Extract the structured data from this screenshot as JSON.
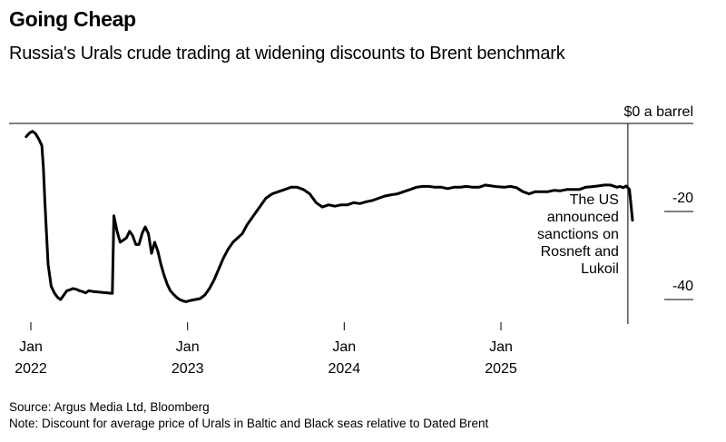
{
  "chart_data": {
    "type": "line",
    "title": "Going Cheap",
    "subtitle": "Russia's Urals crude trading at widening discounts to Brent benchmark",
    "yunit": "$0 a barrel",
    "ylim": [
      -48,
      2
    ],
    "y_ticks": [
      {
        "value": -20,
        "label": "-20"
      },
      {
        "value": -40,
        "label": "-40"
      }
    ],
    "x_ticks": [
      {
        "value": 2022.0,
        "label_top": "Jan",
        "label_bottom": "2022"
      },
      {
        "value": 2023.0,
        "label_top": "Jan",
        "label_bottom": "2023"
      },
      {
        "value": 2024.0,
        "label_top": "Jan",
        "label_bottom": "2024"
      },
      {
        "value": 2025.0,
        "label_top": "Jan",
        "label_bottom": "2025"
      }
    ],
    "grid": false,
    "legend": "none",
    "series": [
      {
        "color": "#000000",
        "x": [
          2021.97,
          2021.99,
          2022.01,
          2022.03,
          2022.05,
          2022.07,
          2022.08,
          2022.09,
          2022.11,
          2022.13,
          2022.15,
          2022.17,
          2022.19,
          2022.21,
          2022.23,
          2022.25,
          2022.27,
          2022.29,
          2022.31,
          2022.33,
          2022.35,
          2022.37,
          2022.4,
          2022.43,
          2022.46,
          2022.49,
          2022.52,
          2022.53,
          2022.55,
          2022.57,
          2022.59,
          2022.61,
          2022.63,
          2022.65,
          2022.67,
          2022.69,
          2022.71,
          2022.73,
          2022.75,
          2022.77,
          2022.79,
          2022.81,
          2022.83,
          2022.85,
          2022.87,
          2022.89,
          2022.91,
          2022.93,
          2022.95,
          2022.97,
          2022.99,
          2023.02,
          2023.05,
          2023.08,
          2023.11,
          2023.14,
          2023.17,
          2023.2,
          2023.23,
          2023.26,
          2023.29,
          2023.32,
          2023.35,
          2023.38,
          2023.41,
          2023.44,
          2023.47,
          2023.5,
          2023.54,
          2023.58,
          2023.62,
          2023.66,
          2023.7,
          2023.74,
          2023.78,
          2023.82,
          2023.86,
          2023.9,
          2023.94,
          2023.98,
          2024.02,
          2024.06,
          2024.1,
          2024.14,
          2024.18,
          2024.22,
          2024.26,
          2024.3,
          2024.34,
          2024.38,
          2024.42,
          2024.46,
          2024.5,
          2024.54,
          2024.58,
          2024.62,
          2024.66,
          2024.7,
          2024.74,
          2024.78,
          2024.82,
          2024.86,
          2024.9,
          2024.94,
          2024.98,
          2025.02,
          2025.06,
          2025.1,
          2025.14,
          2025.18,
          2025.22,
          2025.26,
          2025.3,
          2025.34,
          2025.38,
          2025.42,
          2025.46,
          2025.5,
          2025.54,
          2025.58,
          2025.62,
          2025.66,
          2025.7,
          2025.74,
          2025.76,
          2025.78,
          2025.8,
          2025.82,
          2025.84
        ],
        "y": [
          -3.0,
          -2.2,
          -1.8,
          -2.3,
          -3.5,
          -5.0,
          -10.0,
          -18.0,
          -32.0,
          -37.0,
          -38.5,
          -39.5,
          -40.0,
          -39.0,
          -38.0,
          -37.8,
          -37.5,
          -37.7,
          -38.0,
          -38.2,
          -38.5,
          -38.0,
          -38.2,
          -38.3,
          -38.4,
          -38.5,
          -38.6,
          -21.0,
          -24.5,
          -27.0,
          -26.5,
          -26.0,
          -24.5,
          -25.5,
          -27.5,
          -27.5,
          -25.0,
          -23.5,
          -25.0,
          -29.5,
          -27.0,
          -29.0,
          -32.0,
          -34.5,
          -36.5,
          -38.0,
          -38.8,
          -39.5,
          -40.0,
          -40.3,
          -40.5,
          -40.2,
          -40.0,
          -39.8,
          -39.0,
          -37.5,
          -35.5,
          -33.0,
          -30.5,
          -28.5,
          -27.0,
          -26.0,
          -25.0,
          -23.0,
          -21.5,
          -20.0,
          -18.5,
          -17.0,
          -16.0,
          -15.5,
          -15.0,
          -14.5,
          -14.5,
          -15.0,
          -16.0,
          -18.0,
          -19.0,
          -18.5,
          -18.8,
          -18.5,
          -18.5,
          -18.0,
          -18.2,
          -17.8,
          -17.5,
          -17.0,
          -16.5,
          -16.2,
          -16.0,
          -15.5,
          -15.0,
          -14.5,
          -14.3,
          -14.3,
          -14.5,
          -14.5,
          -14.8,
          -14.5,
          -14.5,
          -14.3,
          -14.5,
          -14.5,
          -14.0,
          -14.2,
          -14.4,
          -14.5,
          -14.3,
          -14.6,
          -15.5,
          -16.0,
          -15.5,
          -15.5,
          -15.5,
          -15.2,
          -15.3,
          -15.0,
          -15.0,
          -15.0,
          -14.5,
          -14.4,
          -14.2,
          -14.0,
          -14.0,
          -14.5,
          -14.3,
          -14.6,
          -14.2,
          -15.0,
          -22.0
        ]
      }
    ],
    "annotations": [
      {
        "x": 2025.81,
        "lines": [
          "The US",
          "announced",
          "sanctions on",
          "Rosneft and",
          "Lukoil"
        ]
      }
    ]
  },
  "footer": {
    "source": "Source: Argus Media Ltd, Bloomberg",
    "note": "Note: Discount for average price of Urals in Baltic and Black seas relative to Dated Brent"
  }
}
